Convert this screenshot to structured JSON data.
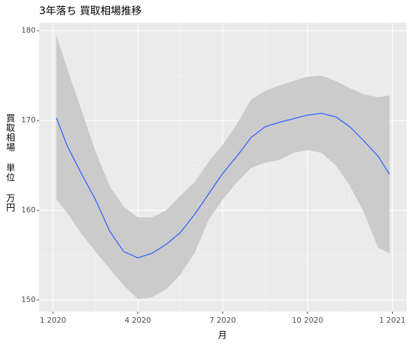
{
  "chart_data": {
    "type": "line",
    "title": "3年落ち 買取相場推移",
    "x_label": "月",
    "y_label": "買取相場 単位 万円",
    "x": [
      0.12,
      0.5,
      1,
      1.5,
      2,
      2.5,
      3,
      3.5,
      4,
      4.5,
      5,
      5.5,
      6,
      6.5,
      7,
      7.5,
      8,
      8.5,
      9,
      9.5,
      10,
      10.5,
      11,
      11.5,
      11.9
    ],
    "series": [
      {
        "color": "#3366ff",
        "values": [
          170.3,
          167.2,
          164.1,
          161.2,
          157.7,
          155.4,
          154.7,
          155.2,
          156.2,
          157.5,
          159.5,
          161.8,
          164.1,
          166.0,
          168.1,
          169.3,
          169.8,
          170.2,
          170.6,
          170.8,
          170.4,
          169.3,
          167.7,
          166.0,
          164.0
        ]
      }
    ],
    "band": {
      "color": "#cbcbcb",
      "upper": [
        179.5,
        175.8,
        171.2,
        166.6,
        162.7,
        160.4,
        159.2,
        159.2,
        160.0,
        161.6,
        163.1,
        165.4,
        167.3,
        169.6,
        172.3,
        173.3,
        173.9,
        174.4,
        174.9,
        175.0,
        174.4,
        173.6,
        172.9,
        172.6,
        172.8
      ],
      "lower": [
        161.2,
        159.7,
        157.4,
        155.4,
        153.5,
        151.6,
        150.1,
        150.3,
        151.2,
        152.8,
        155.2,
        158.9,
        161.2,
        163.1,
        164.7,
        165.3,
        165.6,
        166.4,
        166.7,
        166.4,
        165.0,
        162.7,
        159.7,
        155.8,
        155.2
      ]
    },
    "xlim": [
      -0.49,
      12.5
    ],
    "xticks": [
      {
        "value": 0,
        "label": "1 2020"
      },
      {
        "value": 3,
        "label": "4 2020"
      },
      {
        "value": 6,
        "label": "7 2020"
      },
      {
        "value": 9,
        "label": "10 2020"
      },
      {
        "value": 12,
        "label": "1 2021"
      }
    ],
    "ylim": [
      148.7,
      180.9
    ],
    "yticks": [
      150,
      160,
      170,
      180
    ],
    "grid": true
  }
}
